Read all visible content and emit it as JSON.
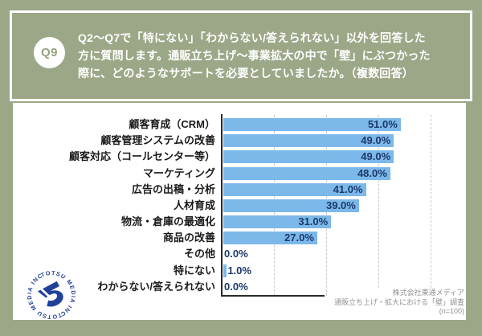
{
  "header": {
    "badge": "Q9",
    "title_lines": [
      "Q2〜Q7で「特にない」「わからない/答えられない」以外を回答した",
      "方に質問します。通販立ち上げ〜事業拡大の中で「壁」にぶつかった",
      "際に、どのようなサポートを必要としていましたか。（複数回答）"
    ]
  },
  "chart_data": {
    "type": "bar",
    "orientation": "horizontal",
    "categories": [
      "顧客育成（CRM）",
      "顧客管理システムの改善",
      "顧客対応（コールセンター等）",
      "マーケティング",
      "広告の出稿・分析",
      "人材育成",
      "物流・倉庫の最適化",
      "商品の改善",
      "その他",
      "特にない",
      "わからない/答えられない"
    ],
    "values": [
      51.0,
      49.0,
      49.0,
      48.0,
      41.0,
      39.0,
      31.0,
      27.0,
      0.0,
      1.0,
      0.0
    ],
    "value_labels": [
      "51.0%",
      "49.0%",
      "49.0%",
      "48.0%",
      "41.0%",
      "39.0%",
      "31.0%",
      "27.0%",
      "0.0%",
      "1.0%",
      "0.0%"
    ],
    "xlim": [
      0,
      60
    ],
    "grid_interval_pct": 15,
    "grid": true,
    "legend": false,
    "bar_color": "#7CB8E9",
    "value_label_color": "#1B3A6B"
  },
  "footer": {
    "lines": [
      "株式会社東通メディア",
      "通販立ち上げ・拡大における「壁」調査",
      "(n=100)"
    ]
  },
  "logo": {
    "ring_text": "TOTSU MEDIA INC.",
    "color": "#21409A"
  },
  "colors": {
    "background": "#9CA787",
    "panel_border": "#FFFFFF",
    "card": "#FFFFFF",
    "title_text": "#FFFFFF",
    "category_text": "#1A1A1A",
    "axis": "#2A2A2A",
    "gridline": "#C9C9C9",
    "source_text": "#8F8F8F"
  }
}
